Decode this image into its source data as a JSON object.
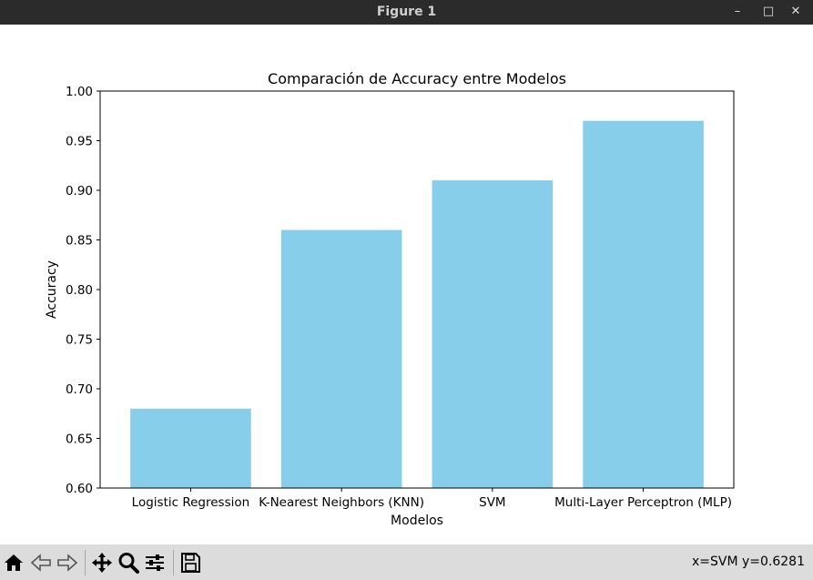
{
  "window": {
    "title": "Figure 1",
    "minimize_glyph": "–",
    "maximize_glyph": "□",
    "close_glyph": "✕"
  },
  "toolbar": {
    "buttons": [
      {
        "name": "home",
        "icon": "home-icon"
      },
      {
        "name": "back",
        "icon": "back-arrow-icon"
      },
      {
        "name": "forward",
        "icon": "forward-arrow-icon"
      },
      {
        "name": "pan",
        "icon": "move-icon"
      },
      {
        "name": "zoom",
        "icon": "zoom-icon"
      },
      {
        "name": "configure",
        "icon": "sliders-icon"
      },
      {
        "name": "save",
        "icon": "save-icon"
      }
    ],
    "status": "x=SVM y=0.6281"
  },
  "chart_data": {
    "type": "bar",
    "title": "Comparación de Accuracy entre Modelos",
    "xlabel": "Modelos",
    "ylabel": "Accuracy",
    "categories": [
      "Logistic Regression",
      "K-Nearest Neighbors (KNN)",
      "SVM",
      "Multi-Layer Perceptron (MLP)"
    ],
    "values": [
      0.68,
      0.86,
      0.91,
      0.97
    ],
    "ylim": [
      0.6,
      1.0
    ],
    "yticks": [
      "0.60",
      "0.65",
      "0.70",
      "0.75",
      "0.80",
      "0.85",
      "0.90",
      "0.95",
      "1.00"
    ],
    "bar_color": "#87ceeb",
    "grid": false,
    "legend": false
  }
}
